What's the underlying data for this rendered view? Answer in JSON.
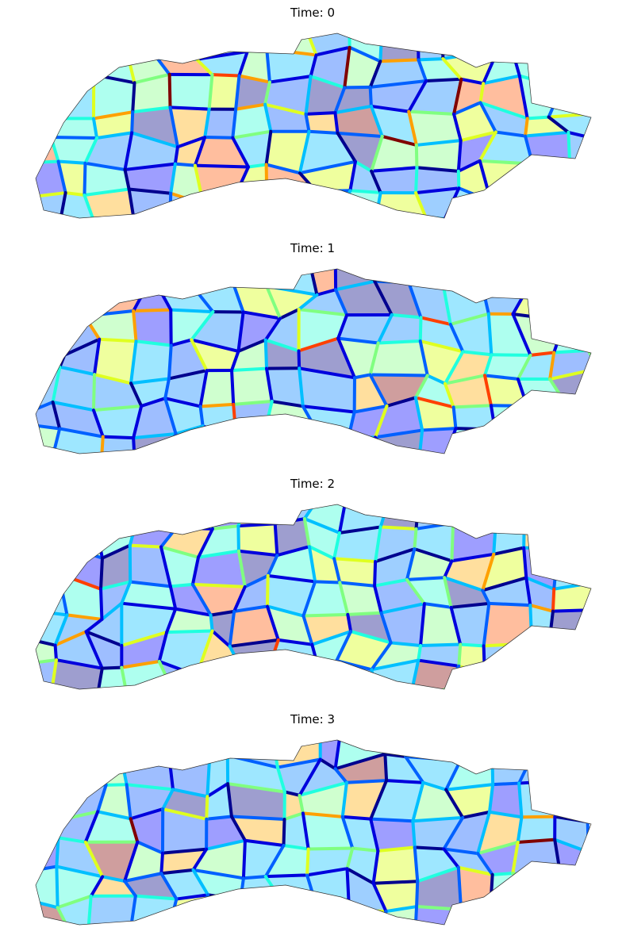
{
  "panels": [
    {
      "title": "Time: 0"
    },
    {
      "title": "Time: 1"
    },
    {
      "title": "Time: 2"
    },
    {
      "title": "Time: 3"
    }
  ]
}
